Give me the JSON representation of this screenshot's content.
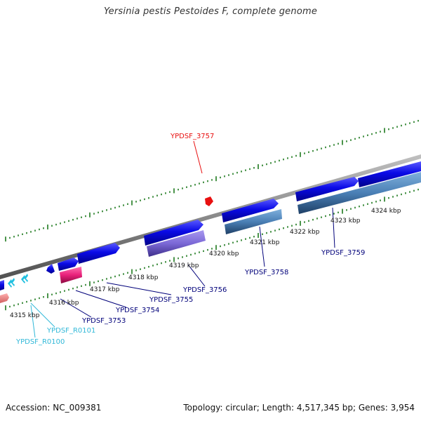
{
  "title": "Yersinia pestis Pestoides F, complete genome",
  "footer": {
    "accession": "Accession: NC_009381",
    "summary": "Topology: circular; Length: 4,517,345 bp; Genes: 3,954"
  },
  "colors": {
    "backbone": "#8a8a8a",
    "tick": "#1e7a1e",
    "cds_forward": "#0a0ae6",
    "cds_reverse": "#4a7fb5",
    "cds_purple": "#7b68d6",
    "pink": "#e8207a",
    "salmon": "#f08080",
    "rna": "#20c0e0",
    "highlight": "#e81010",
    "label_dark": "#00007a",
    "label_cyan": "#30b8d8"
  },
  "kbp_ticks": [
    "4315 kbp",
    "4316 kbp",
    "4317 kbp",
    "4318 kbp",
    "4319 kbp",
    "4320 kbp",
    "4321 kbp",
    "4322 kbp",
    "4323 kbp",
    "4324 kbp"
  ],
  "gene_labels": [
    {
      "name": "YPDSF_3757",
      "color": "highlight"
    },
    {
      "name": "YPDSF_3759",
      "color": "label_dark"
    },
    {
      "name": "YPDSF_3758",
      "color": "label_dark"
    },
    {
      "name": "YPDSF_3756",
      "color": "label_dark"
    },
    {
      "name": "YPDSF_3755",
      "color": "label_dark"
    },
    {
      "name": "YPDSF_3754",
      "color": "label_dark"
    },
    {
      "name": "YPDSF_3753",
      "color": "label_dark"
    },
    {
      "name": "YPDSF_R0101",
      "color": "label_cyan"
    },
    {
      "name": "YPDSF_R0100",
      "color": "label_cyan"
    }
  ]
}
